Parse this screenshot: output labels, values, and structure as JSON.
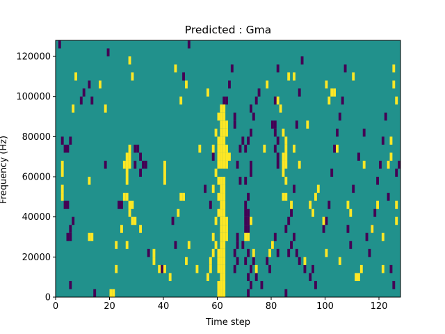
{
  "chart_data": {
    "type": "heatmap",
    "title": "Predicted : Gma",
    "xlabel": "Time step",
    "ylabel": "Frequency (Hz)",
    "xlim": [
      0,
      128
    ],
    "ylim": [
      0,
      128000
    ],
    "x_ticks": [
      0,
      20,
      40,
      60,
      80,
      100,
      120
    ],
    "y_ticks": [
      0,
      20000,
      40000,
      60000,
      80000,
      100000,
      120000
    ],
    "y_tick_labels": [
      "0",
      "20000",
      "40000",
      "60000",
      "80000",
      "100000",
      "120000"
    ],
    "grid": false,
    "colors": {
      "background": "#21918c",
      "high": "#fde725",
      "low": "#440154"
    },
    "cell_width": 1,
    "cell_height": 4000,
    "high_cells": [
      [
        60,
        0
      ],
      [
        61,
        0
      ],
      [
        62,
        0
      ],
      [
        60,
        4000
      ],
      [
        61,
        4000
      ],
      [
        62,
        4000
      ],
      [
        61,
        8000
      ],
      [
        62,
        8000
      ],
      [
        60,
        12000
      ],
      [
        61,
        12000
      ],
      [
        62,
        12000
      ],
      [
        60,
        16000
      ],
      [
        61,
        16000
      ],
      [
        62,
        16000
      ],
      [
        60,
        20000
      ],
      [
        61,
        20000
      ],
      [
        62,
        20000
      ],
      [
        61,
        24000
      ],
      [
        62,
        24000
      ],
      [
        61,
        28000
      ],
      [
        62,
        28000
      ],
      [
        63,
        28000
      ],
      [
        61,
        32000
      ],
      [
        62,
        32000
      ],
      [
        63,
        32000
      ],
      [
        61,
        36000
      ],
      [
        62,
        36000
      ],
      [
        63,
        36000
      ],
      [
        60,
        40000
      ],
      [
        61,
        40000
      ],
      [
        62,
        40000
      ],
      [
        61,
        44000
      ],
      [
        62,
        44000
      ],
      [
        60,
        48000
      ],
      [
        61,
        48000
      ],
      [
        62,
        48000
      ],
      [
        61,
        52000
      ],
      [
        62,
        52000
      ],
      [
        60,
        56000
      ],
      [
        61,
        56000
      ],
      [
        62,
        56000
      ],
      [
        60,
        64000
      ],
      [
        61,
        64000
      ],
      [
        62,
        64000
      ],
      [
        63,
        64000
      ],
      [
        60,
        68000
      ],
      [
        61,
        68000
      ],
      [
        62,
        68000
      ],
      [
        63,
        68000
      ],
      [
        64,
        68000
      ],
      [
        60,
        72000
      ],
      [
        61,
        72000
      ],
      [
        62,
        72000
      ],
      [
        63,
        72000
      ],
      [
        60,
        76000
      ],
      [
        61,
        76000
      ],
      [
        62,
        76000
      ],
      [
        61,
        80000
      ],
      [
        62,
        80000
      ],
      [
        63,
        80000
      ],
      [
        61,
        84000
      ],
      [
        62,
        84000
      ],
      [
        63,
        84000
      ],
      [
        60,
        88000
      ],
      [
        61,
        88000
      ],
      [
        62,
        88000
      ],
      [
        61,
        92000
      ],
      [
        62,
        92000
      ],
      [
        56,
        8000
      ],
      [
        57,
        12000
      ],
      [
        57,
        16000
      ],
      [
        58,
        20000
      ],
      [
        59,
        24000
      ],
      [
        58,
        28000
      ],
      [
        59,
        36000
      ],
      [
        58,
        52000
      ],
      [
        59,
        60000
      ],
      [
        58,
        72000
      ],
      [
        59,
        80000
      ],
      [
        25,
        64000
      ],
      [
        26,
        64000
      ],
      [
        27,
        64000
      ],
      [
        26,
        60000
      ],
      [
        26,
        68000
      ],
      [
        27,
        68000
      ],
      [
        27,
        72000
      ],
      [
        26,
        56000
      ],
      [
        27,
        44000
      ],
      [
        28,
        44000
      ],
      [
        27,
        40000
      ],
      [
        26,
        48000
      ],
      [
        28,
        36000
      ],
      [
        84,
        64000
      ],
      [
        85,
        64000
      ],
      [
        84,
        68000
      ],
      [
        85,
        68000
      ],
      [
        85,
        72000
      ],
      [
        84,
        60000
      ],
      [
        85,
        56000
      ],
      [
        84,
        48000
      ],
      [
        85,
        48000
      ],
      [
        85,
        76000
      ],
      [
        84,
        80000
      ],
      [
        40,
        64000
      ],
      [
        40,
        60000
      ],
      [
        40,
        56000
      ],
      [
        36,
        16000
      ],
      [
        36,
        20000
      ],
      [
        38,
        12000
      ],
      [
        40,
        12000
      ],
      [
        42,
        8000
      ],
      [
        2,
        64000
      ],
      [
        2,
        60000
      ],
      [
        2,
        52000
      ],
      [
        2,
        48000
      ],
      [
        12,
        28000
      ],
      [
        13,
        28000
      ],
      [
        6,
        92000
      ],
      [
        7,
        108000
      ],
      [
        12,
        56000
      ],
      [
        16,
        104000
      ],
      [
        18,
        92000
      ],
      [
        20,
        0
      ],
      [
        21,
        0
      ],
      [
        22,
        12000
      ],
      [
        22,
        24000
      ],
      [
        24,
        32000
      ],
      [
        25,
        48000
      ],
      [
        26,
        24000
      ],
      [
        29,
        36000
      ],
      [
        31,
        32000
      ],
      [
        45,
        40000
      ],
      [
        46,
        48000
      ],
      [
        47,
        48000
      ],
      [
        48,
        16000
      ],
      [
        49,
        24000
      ],
      [
        52,
        12000
      ],
      [
        53,
        72000
      ],
      [
        56,
        100000
      ],
      [
        70,
        28000
      ],
      [
        71,
        28000
      ],
      [
        72,
        36000
      ],
      [
        73,
        20000
      ],
      [
        74,
        12000
      ],
      [
        79,
        20000
      ],
      [
        80,
        24000
      ],
      [
        87,
        44000
      ],
      [
        88,
        72000
      ],
      [
        90,
        64000
      ],
      [
        95,
        40000
      ],
      [
        96,
        48000
      ],
      [
        97,
        52000
      ],
      [
        99,
        36000
      ],
      [
        100,
        20000
      ],
      [
        102,
        100000
      ],
      [
        103,
        100000
      ],
      [
        104,
        72000
      ],
      [
        105,
        16000
      ],
      [
        111,
        8000
      ],
      [
        112,
        8000
      ],
      [
        110,
        108000
      ],
      [
        114,
        64000
      ],
      [
        117,
        32000
      ],
      [
        119,
        44000
      ],
      [
        121,
        28000
      ],
      [
        124,
        76000
      ],
      [
        125,
        104000
      ],
      [
        125,
        112000
      ],
      [
        126,
        96000
      ],
      [
        27,
        116000
      ],
      [
        28,
        108000
      ],
      [
        44,
        112000
      ],
      [
        46,
        96000
      ],
      [
        48,
        104000
      ],
      [
        77,
        72000
      ],
      [
        78,
        104000
      ],
      [
        82,
        96000
      ],
      [
        86,
        108000
      ],
      [
        88,
        108000
      ],
      [
        92,
        16000
      ],
      [
        93,
        84000
      ],
      [
        94,
        44000
      ],
      [
        100,
        104000
      ],
      [
        101,
        96000
      ],
      [
        108,
        44000
      ],
      [
        109,
        40000
      ],
      [
        113,
        12000
      ],
      [
        121,
        12000
      ],
      [
        123,
        64000
      ],
      [
        124,
        68000
      ],
      [
        126,
        44000
      ],
      [
        126,
        36000
      ],
      [
        83,
        92000
      ]
    ],
    "low_cells": [
      [
        71,
        0
      ],
      [
        72,
        4000
      ],
      [
        71,
        8000
      ],
      [
        72,
        12000
      ],
      [
        70,
        16000
      ],
      [
        71,
        20000
      ],
      [
        69,
        24000
      ],
      [
        70,
        32000
      ],
      [
        71,
        32000
      ],
      [
        70,
        36000
      ],
      [
        71,
        36000
      ],
      [
        70,
        40000
      ],
      [
        71,
        40000
      ],
      [
        70,
        44000
      ],
      [
        71,
        48000
      ],
      [
        70,
        56000
      ],
      [
        72,
        60000
      ],
      [
        72,
        64000
      ],
      [
        70,
        72000
      ],
      [
        71,
        76000
      ],
      [
        72,
        80000
      ],
      [
        73,
        88000
      ],
      [
        72,
        92000
      ],
      [
        74,
        96000
      ],
      [
        75,
        100000
      ],
      [
        78,
        16000
      ],
      [
        79,
        12000
      ],
      [
        80,
        24000
      ],
      [
        81,
        28000
      ],
      [
        82,
        20000
      ],
      [
        82,
        64000
      ],
      [
        82,
        68000
      ],
      [
        81,
        72000
      ],
      [
        82,
        76000
      ],
      [
        81,
        80000
      ],
      [
        80,
        84000
      ],
      [
        81,
        84000
      ],
      [
        81,
        96000
      ],
      [
        82,
        112000
      ],
      [
        66,
        12000
      ],
      [
        67,
        16000
      ],
      [
        66,
        20000
      ],
      [
        67,
        24000
      ],
      [
        67,
        28000
      ],
      [
        68,
        56000
      ],
      [
        67,
        64000
      ],
      [
        68,
        72000
      ],
      [
        69,
        76000
      ],
      [
        66,
        84000
      ],
      [
        66,
        88000
      ],
      [
        14,
        0
      ],
      [
        5,
        4000
      ],
      [
        4,
        28000
      ],
      [
        5,
        28000
      ],
      [
        6,
        36000
      ],
      [
        3,
        44000
      ],
      [
        4,
        44000
      ],
      [
        5,
        32000
      ],
      [
        2,
        76000
      ],
      [
        3,
        72000
      ],
      [
        4,
        72000
      ],
      [
        5,
        76000
      ],
      [
        9,
        96000
      ],
      [
        10,
        100000
      ],
      [
        12,
        104000
      ],
      [
        13,
        96000
      ],
      [
        18,
        64000
      ],
      [
        19,
        120000
      ],
      [
        23,
        44000
      ],
      [
        24,
        44000
      ],
      [
        29,
        72000
      ],
      [
        30,
        72000
      ],
      [
        31,
        68000
      ],
      [
        32,
        64000
      ],
      [
        33,
        64000
      ],
      [
        29,
        64000
      ],
      [
        31,
        60000
      ],
      [
        34,
        20000
      ],
      [
        39,
        12000
      ],
      [
        43,
        36000
      ],
      [
        44,
        24000
      ],
      [
        47,
        108000
      ],
      [
        49,
        124000
      ],
      [
        55,
        52000
      ],
      [
        57,
        44000
      ],
      [
        58,
        68000
      ],
      [
        62,
        96000
      ],
      [
        63,
        96000
      ],
      [
        64,
        104000
      ],
      [
        65,
        112000
      ],
      [
        73,
        16000
      ],
      [
        74,
        8000
      ],
      [
        76,
        4000
      ],
      [
        85,
        0
      ],
      [
        86,
        20000
      ],
      [
        87,
        40000
      ],
      [
        88,
        52000
      ],
      [
        89,
        84000
      ],
      [
        90,
        100000
      ],
      [
        91,
        116000
      ],
      [
        92,
        12000
      ],
      [
        94,
        8000
      ],
      [
        95,
        12000
      ],
      [
        96,
        4000
      ],
      [
        99,
        32000
      ],
      [
        100,
        36000
      ],
      [
        101,
        44000
      ],
      [
        102,
        60000
      ],
      [
        103,
        72000
      ],
      [
        104,
        80000
      ],
      [
        105,
        88000
      ],
      [
        106,
        96000
      ],
      [
        107,
        112000
      ],
      [
        108,
        32000
      ],
      [
        109,
        24000
      ],
      [
        110,
        52000
      ],
      [
        112,
        68000
      ],
      [
        114,
        80000
      ],
      [
        115,
        28000
      ],
      [
        116,
        20000
      ],
      [
        117,
        32000
      ],
      [
        118,
        40000
      ],
      [
        119,
        56000
      ],
      [
        120,
        64000
      ],
      [
        121,
        76000
      ],
      [
        122,
        88000
      ],
      [
        123,
        48000
      ],
      [
        124,
        12000
      ],
      [
        125,
        4000
      ],
      [
        126,
        60000
      ],
      [
        127,
        64000
      ],
      [
        1,
        124000
      ],
      [
        85,
        32000
      ],
      [
        86,
        36000
      ],
      [
        87,
        24000
      ],
      [
        88,
        28000
      ],
      [
        89,
        20000
      ],
      [
        90,
        16000
      ]
    ]
  }
}
